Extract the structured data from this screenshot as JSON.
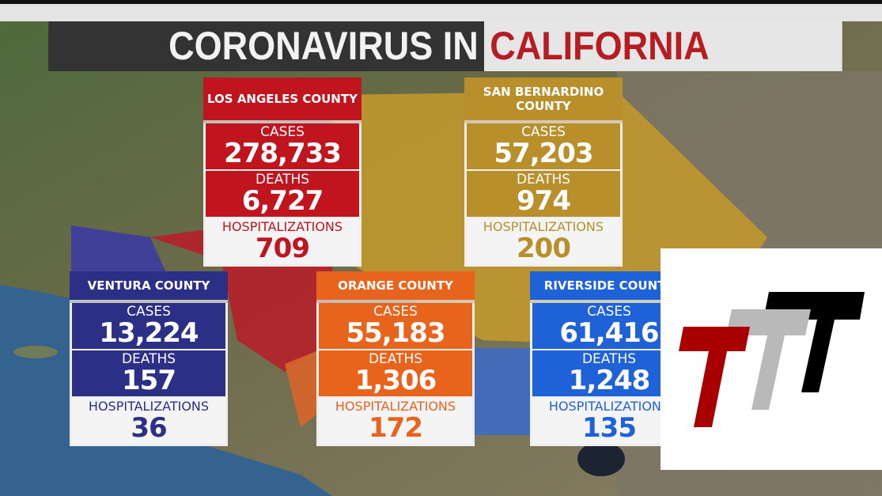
{
  "title": {
    "part1": "CORONAVIRUS IN",
    "part2": "CALIFORNIA"
  },
  "labels": {
    "cases": "CASES",
    "deaths": "DEATHS",
    "hospitalizations": "HOSPITALIZATIONS"
  },
  "counties": {
    "la": {
      "name": "LOS ANGELES COUNTY",
      "cases": "278,733",
      "deaths": "6,727",
      "hospitalizations": "709",
      "color": "#c0141e"
    },
    "sb": {
      "name": "SAN BERNARDINO COUNTY",
      "cases": "57,203",
      "deaths": "974",
      "hospitalizations": "200",
      "color": "#b88f2b"
    },
    "ventura": {
      "name": "VENTURA COUNTY",
      "cases": "13,224",
      "deaths": "157",
      "hospitalizations": "36",
      "color": "#2b2f86"
    },
    "orange": {
      "name": "ORANGE COUNTY",
      "cases": "55,183",
      "deaths": "1,306",
      "hospitalizations": "172",
      "color": "#e8641d"
    },
    "riverside": {
      "name": "RIVERSIDE COUNTY",
      "cases": "61,416",
      "deaths": "1,248",
      "hospitalizations": "135",
      "color": "#1f62d8"
    }
  },
  "logo": {
    "colors": [
      "#a80000",
      "#b9b9b9",
      "#000000"
    ]
  }
}
